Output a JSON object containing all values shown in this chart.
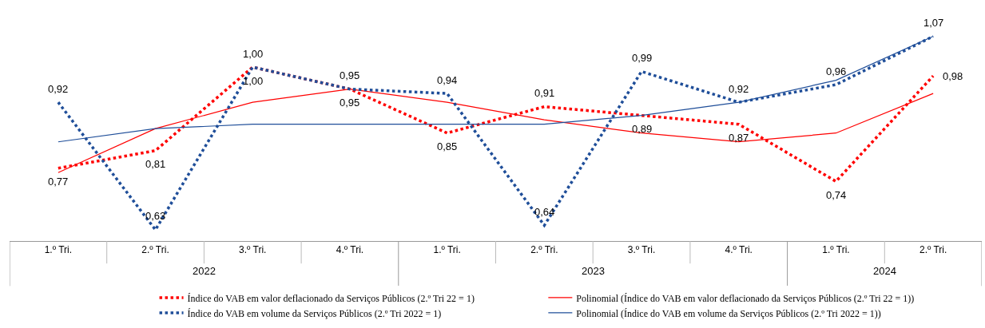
{
  "chart_data": {
    "type": "line",
    "categories": [
      "1.º Tri.",
      "2.º Tri.",
      "3.º Tri.",
      "4.º Tri.",
      "1.º Tri.",
      "2.º Tri.",
      "3.º Tri.",
      "4.º Tri.",
      "1.º Tri.",
      "2.º Tri."
    ],
    "annotations": [
      "2022",
      "2023",
      "2024"
    ],
    "series": [
      {
        "name": "Índice do VAB em valor deflacionado da Serviços Públicos (2.º Tri 22 = 1)",
        "color": "#ff0000",
        "line_style": "dotted",
        "values": [
          0.77,
          0.81,
          1.0,
          0.95,
          0.85,
          0.91,
          0.89,
          0.87,
          0.74,
          0.98
        ],
        "value_labels": [
          "0,77",
          "0,81",
          "1,00",
          "0,95",
          "0,85",
          "0,91",
          "0,89",
          "0,87",
          "0,74",
          "0,98"
        ]
      },
      {
        "name": "Polinomial (Índice do VAB em valor deflacionado da Serviços Públicos (2.º Tri 22 = 1))",
        "color": "#ff0000",
        "line_style": "solid",
        "values": [
          0.76,
          0.86,
          0.92,
          0.95,
          0.92,
          0.88,
          0.85,
          0.83,
          0.85,
          0.94
        ]
      },
      {
        "name": "Índice do VAB em volume da Serviços Públicos (2.º Tri 2022 = 1)",
        "color": "#1f4e99",
        "line_style": "dotted",
        "values": [
          0.92,
          0.63,
          1.0,
          0.95,
          0.94,
          0.64,
          0.99,
          0.92,
          0.96,
          1.07
        ],
        "value_labels": [
          "0,92",
          "0,63",
          "1,00",
          "0,95",
          "0,94",
          "0,64",
          "0,99",
          "0,92",
          "0,96",
          "1,07"
        ]
      },
      {
        "name": "Polinomial (Índice do VAB em volume da Serviços Públicos (2.º Tri 2022 = 1))",
        "color": "#1f4e99",
        "line_style": "solid",
        "values": [
          0.83,
          0.86,
          0.87,
          0.87,
          0.87,
          0.87,
          0.89,
          0.92,
          0.97,
          1.07
        ]
      }
    ],
    "legend": "bottom",
    "grid": false,
    "marker": "none",
    "tick_labels": "x"
  }
}
